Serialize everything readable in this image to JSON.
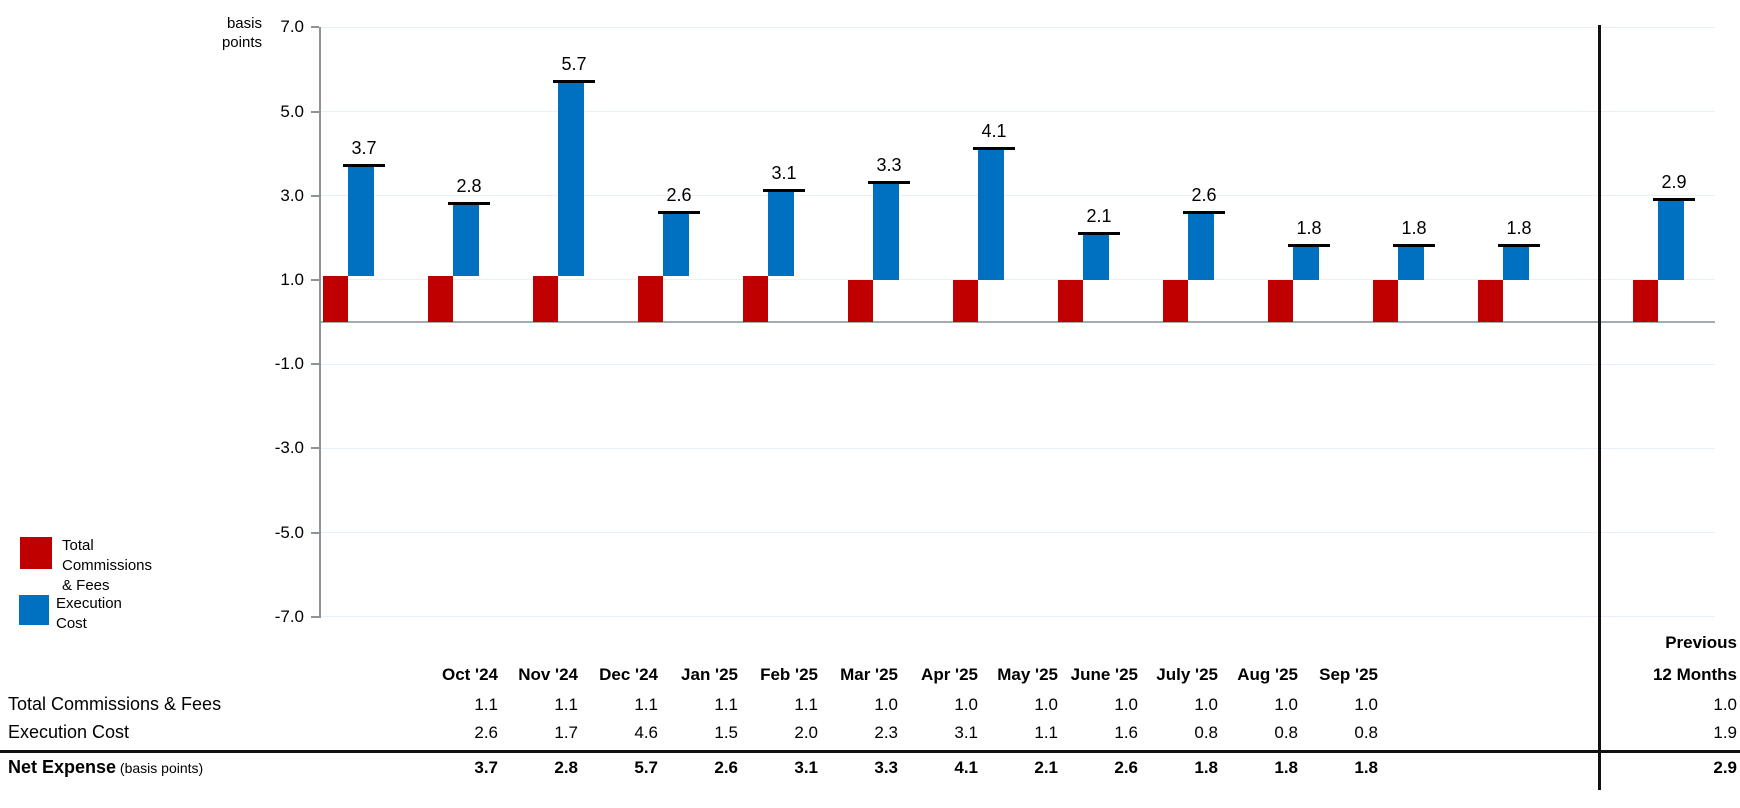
{
  "axis": {
    "unit_label_line1": "basis",
    "unit_label_line2": "points",
    "ticks": [
      "7.0",
      "5.0",
      "3.0",
      "1.0",
      "-1.0",
      "-3.0",
      "-5.0",
      "-7.0"
    ],
    "tick_values": [
      7,
      5,
      3,
      1,
      -1,
      -3,
      -5,
      -7
    ]
  },
  "legend": [
    {
      "label_line1": "Total Commissions",
      "label_line2": "& Fees",
      "color": "#C00000"
    },
    {
      "label_line1": "Execution",
      "label_line2": "Cost",
      "color": "#0070C0"
    }
  ],
  "chart_data": {
    "type": "bar",
    "subtype": "stacked-waterfall-with-total-markers",
    "title": "",
    "ylabel": "basis points",
    "ylim": [
      -7.0,
      7.0
    ],
    "grid": true,
    "gridline_step": 2.0,
    "legend_position": "bottom-left",
    "categories": [
      "Oct '24",
      "Nov '24",
      "Dec '24",
      "Jan '25",
      "Feb '25",
      "Mar '25",
      "Apr '25",
      "May '25",
      "June '25",
      "July '25",
      "Aug '25",
      "Sep '25",
      "Previous 12 Months"
    ],
    "series": [
      {
        "name": "Total Commissions & Fees",
        "color": "#C00000",
        "values": [
          1.1,
          1.1,
          1.1,
          1.1,
          1.1,
          1.0,
          1.0,
          1.0,
          1.0,
          1.0,
          1.0,
          1.0,
          1.0
        ]
      },
      {
        "name": "Execution Cost",
        "color": "#0070C0",
        "values": [
          2.6,
          1.7,
          4.6,
          1.5,
          2.0,
          2.3,
          3.1,
          1.1,
          1.6,
          0.8,
          0.8,
          0.8,
          1.9
        ]
      },
      {
        "name": "Net Expense (basis points)",
        "color": "#000000",
        "values": [
          3.7,
          2.8,
          5.7,
          2.6,
          3.1,
          3.3,
          4.1,
          2.1,
          2.6,
          1.8,
          1.8,
          1.8,
          2.9
        ]
      }
    ],
    "net_labels": [
      "3.7",
      "2.8",
      "5.7",
      "2.6",
      "3.1",
      "3.3",
      "4.1",
      "2.1",
      "2.6",
      "1.8",
      "1.8",
      "1.8",
      "2.9"
    ]
  },
  "table": {
    "col_headers": [
      "Oct '24",
      "Nov '24",
      "Dec '24",
      "Jan '25",
      "Feb '25",
      "Mar '25",
      "Apr '25",
      "May '25",
      "June '25",
      "July '25",
      "Aug '25",
      "Sep '25"
    ],
    "last_col_header_line1": "Previous",
    "last_col_header_line2": "12 Months",
    "rows": [
      {
        "label": "Total Commissions & Fees",
        "bold": false,
        "values": [
          "1.1",
          "1.1",
          "1.1",
          "1.1",
          "1.1",
          "1.0",
          "1.0",
          "1.0",
          "1.0",
          "1.0",
          "1.0",
          "1.0"
        ],
        "last_value": "1.0"
      },
      {
        "label": "Execution Cost",
        "bold": false,
        "values": [
          "2.6",
          "1.7",
          "4.6",
          "1.5",
          "2.0",
          "2.3",
          "3.1",
          "1.1",
          "1.6",
          "0.8",
          "0.8",
          "0.8"
        ],
        "last_value": "1.9"
      },
      {
        "label": "Net Expense",
        "label_suffix": " (basis points)",
        "bold": true,
        "values": [
          "3.7",
          "2.8",
          "5.7",
          "2.6",
          "3.1",
          "3.3",
          "4.1",
          "2.1",
          "2.6",
          "1.8",
          "1.8",
          "1.8"
        ],
        "last_value": "2.9"
      }
    ]
  }
}
